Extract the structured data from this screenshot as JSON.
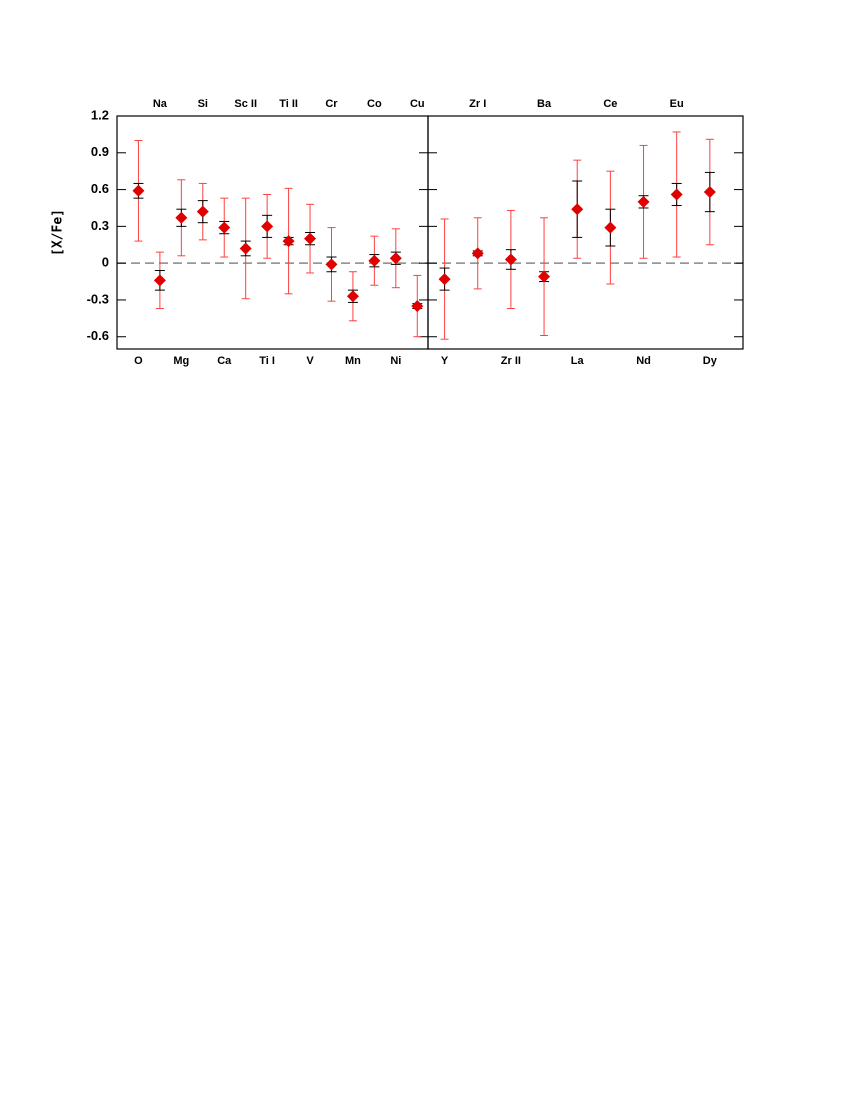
{
  "chart_data": [
    {
      "type": "errorbar",
      "ylabel": "[X/Fe]",
      "categories": [
        "O",
        "Na",
        "Mg",
        "Si",
        "Ca",
        "Sc II",
        "Ti I",
        "Ti II",
        "V",
        "Cr",
        "Mn",
        "Co",
        "Ni",
        "Cu"
      ],
      "values": [
        0.59,
        -0.14,
        0.37,
        0.42,
        0.29,
        0.12,
        0.3,
        0.18,
        0.2,
        -0.01,
        -0.27,
        0.02,
        0.04,
        -0.35
      ],
      "error": [
        0.06,
        0.08,
        0.07,
        0.09,
        0.05,
        0.06,
        0.09,
        0.03,
        0.05,
        0.06,
        0.05,
        0.05,
        0.05,
        0.02
      ],
      "error_total": [
        0.41,
        0.23,
        0.31,
        0.23,
        0.24,
        0.41,
        0.26,
        0.43,
        0.28,
        0.3,
        0.2,
        0.2,
        0.24,
        0.25
      ],
      "color": "#e00000",
      "error_color": "#000000",
      "total_error_color": "#ff4040",
      "ylim": [
        -0.7,
        1.2
      ],
      "yticks": [
        -0.6,
        -0.3,
        0,
        0.3,
        0.6,
        0.9,
        1.2
      ],
      "hline": 0
    },
    {
      "type": "errorbar",
      "categories": [
        "Y",
        "Zr I",
        "Zr II",
        "Ba",
        "La",
        "Ce",
        "Nd",
        "Eu",
        "Dy"
      ],
      "values": [
        -0.13,
        0.08,
        0.03,
        -0.11,
        0.44,
        0.29,
        0.5,
        0.56,
        0.58
      ],
      "error": [
        0.09,
        0.02,
        0.08,
        0.04,
        0.23,
        0.15,
        0.05,
        0.09,
        0.16
      ],
      "error_total": [
        0.49,
        0.29,
        0.4,
        0.48,
        0.4,
        0.46,
        0.46,
        0.51,
        0.43
      ],
      "color": "#e00000",
      "error_color": "#000000",
      "total_error_color": "#ff4040",
      "ylim": [
        -0.7,
        1.2
      ],
      "yticks": [
        -0.6,
        -0.3,
        0,
        0.3,
        0.6,
        0.9,
        1.2
      ],
      "hline": 0
    }
  ]
}
